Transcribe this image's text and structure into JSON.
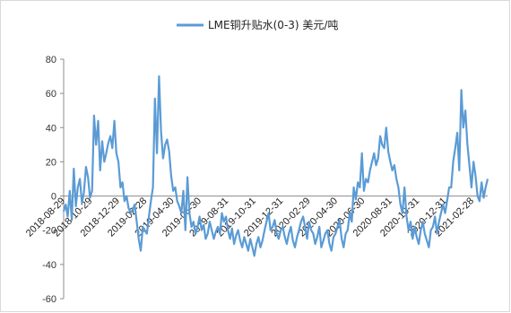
{
  "chart_data": {
    "type": "line",
    "title": "",
    "xlabel": "",
    "ylabel": "",
    "ylim": [
      -60,
      80
    ],
    "y_ticks": [
      80,
      60,
      40,
      20,
      0,
      -20,
      -40,
      -60
    ],
    "grid": false,
    "legend_position": "top",
    "x_tick_labels": [
      "2018-08-29",
      "2018-10-29",
      "2018-12-29",
      "2019-02-28",
      "2019-04-30",
      "2019-06-30",
      "2019-08-31",
      "2019-10-31",
      "2019-12-31",
      "2020-02-29",
      "2020-04-30",
      "2020-06-30",
      "2020-08-31",
      "2020-10-31",
      "2020-12-31",
      "2021-02-28"
    ],
    "series": [
      {
        "name": "LME铜升贴水(0-3) 美元/吨",
        "color": "#5b9bd5",
        "values": [
          -9,
          -5,
          -12,
          3,
          -14,
          16,
          -6,
          5,
          10,
          -4,
          2,
          17,
          11,
          -1,
          3,
          47,
          30,
          44,
          15,
          32,
          20,
          25,
          31,
          35,
          28,
          44,
          25,
          20,
          5,
          8,
          -3,
          0,
          -7,
          -10,
          -8,
          -5,
          -15,
          -25,
          -32,
          -18,
          -20,
          -22,
          -12,
          -3,
          5,
          57,
          25,
          70,
          38,
          22,
          30,
          33,
          26,
          12,
          3,
          5,
          -3,
          -6,
          -10,
          3,
          -20,
          11,
          -10,
          -18,
          -15,
          -22,
          -18,
          -12,
          -20,
          -17,
          -25,
          -22,
          -15,
          -20,
          -25,
          -21,
          -18,
          -22,
          -10,
          -15,
          -12,
          -20,
          -25,
          -19,
          -28,
          -23,
          -20,
          -26,
          -30,
          -24,
          -28,
          -32,
          -25,
          -30,
          -35,
          -28,
          -24,
          -30,
          -26,
          -20,
          -15,
          -10,
          -20,
          -18,
          -14,
          -22,
          -25,
          -20,
          -18,
          -24,
          -28,
          -22,
          -18,
          -26,
          -30,
          -24,
          -20,
          -15,
          -12,
          -18,
          -25,
          -15,
          -20,
          -22,
          -28,
          -24,
          -18,
          -30,
          -26,
          -22,
          -20,
          -28,
          -32,
          -24,
          -22,
          -18,
          -14,
          -25,
          -30,
          -22,
          -20,
          -10,
          -15,
          5,
          -2,
          8,
          5,
          25,
          3,
          10,
          8,
          15,
          20,
          25,
          18,
          22,
          35,
          30,
          28,
          40,
          26,
          20,
          15,
          18,
          10,
          5,
          -5,
          -10,
          5,
          -12,
          -20,
          -15,
          -25,
          -18,
          -24,
          -28,
          -20,
          -15,
          -22,
          -26,
          -30,
          -20,
          -18,
          -12,
          -22,
          -15,
          -10,
          -5,
          -10,
          -3,
          5,
          5,
          20,
          28,
          37,
          15,
          62,
          40,
          50,
          30,
          18,
          5,
          20,
          12,
          0,
          -3,
          8,
          -1,
          5,
          10
        ]
      }
    ]
  }
}
